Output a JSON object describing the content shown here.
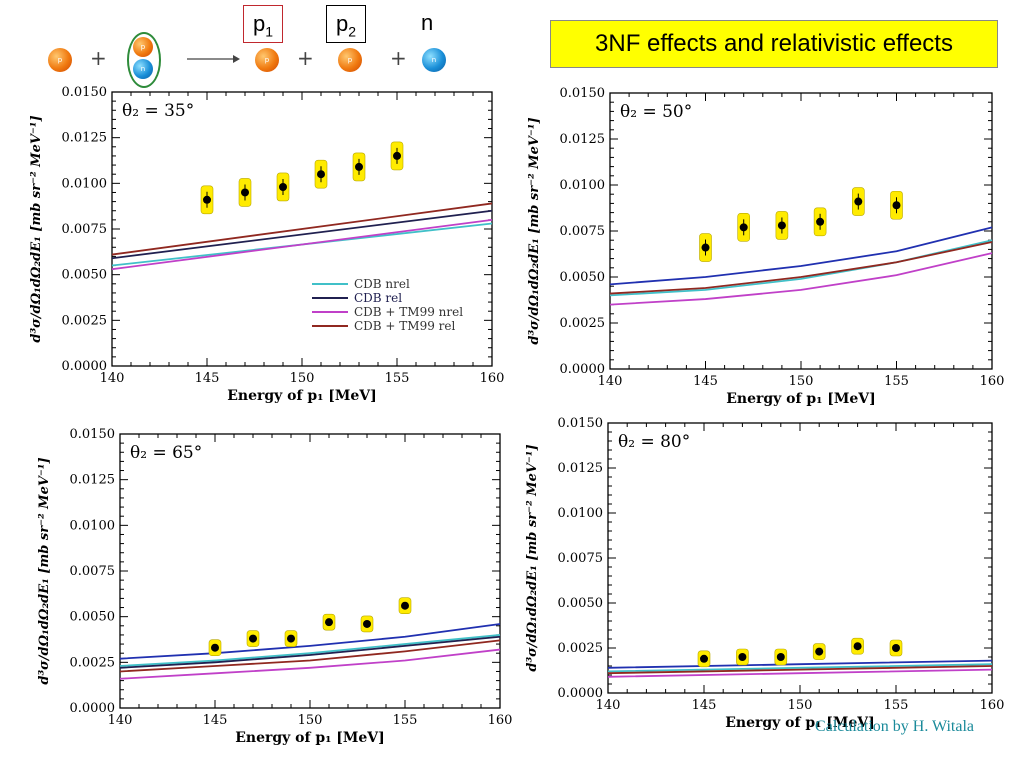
{
  "header": {
    "reaction": {
      "p1_label": "p",
      "p1_sub": "1",
      "p2_label": "p",
      "p2_sub": "2",
      "n_label": "n",
      "proton_symbol": "p",
      "neutron_symbol": "n"
    },
    "title": "3NF effects and relativistic effects"
  },
  "credit": "Calculation by H. Witala",
  "colors": {
    "cdb_nrel": "#40c0c8",
    "cdb_rel": "#202050",
    "cdb_tm99_nrel": "#c040c8",
    "cdb_tm99_rel": "#902820",
    "blue_line": "#2030b0",
    "data_highlight": "#ffeb00",
    "banner": "#ffff00"
  },
  "chart_data": [
    {
      "type": "line",
      "angle_label": "θ₂ = 35°",
      "xlabel": "Energy of p₁ [MeV]",
      "ylabel": "d³σ/dΩ₁dΩ₂dE₁ [mb sr⁻² MeV⁻¹]",
      "xlim": [
        140,
        160
      ],
      "ylim": [
        0,
        0.015
      ],
      "xticks": [
        "140",
        "145",
        "150",
        "155",
        "160"
      ],
      "yticks": [
        "0.0000",
        "0.0025",
        "0.0050",
        "0.0075",
        "0.0100",
        "0.0125",
        "0.0150"
      ],
      "legend": {
        "placement": "bottom-right",
        "entries": [
          "CDB nrel",
          "CDB rel",
          "CDB + TM99 nrel",
          "CDB + TM99 rel"
        ]
      },
      "data_points": [
        {
          "x": 145,
          "y": 0.0091
        },
        {
          "x": 147,
          "y": 0.0095
        },
        {
          "x": 149,
          "y": 0.0098
        },
        {
          "x": 151,
          "y": 0.0105
        },
        {
          "x": 153,
          "y": 0.0109
        },
        {
          "x": 155,
          "y": 0.0115
        }
      ],
      "series": [
        {
          "color_key": "cdb_nrel",
          "x": [
            140,
            160
          ],
          "y": [
            0.0055,
            0.0078
          ]
        },
        {
          "color_key": "cdb_rel",
          "x": [
            140,
            160
          ],
          "y": [
            0.0059,
            0.0085
          ]
        },
        {
          "color_key": "cdb_tm99_nrel",
          "x": [
            140,
            160
          ],
          "y": [
            0.0053,
            0.008
          ]
        },
        {
          "color_key": "cdb_tm99_rel",
          "x": [
            140,
            160
          ],
          "y": [
            0.0061,
            0.0089
          ]
        }
      ]
    },
    {
      "type": "line",
      "angle_label": "θ₂ = 50°",
      "xlabel": "Energy of p₁ [MeV]",
      "ylabel": "d³σ/dΩ₁dΩ₂dE₁ [mb sr⁻² MeV⁻¹]",
      "xlim": [
        140,
        160
      ],
      "ylim": [
        0,
        0.015
      ],
      "xticks": [
        "140",
        "145",
        "150",
        "155",
        "160"
      ],
      "yticks": [
        "0.0000",
        "0.0025",
        "0.0050",
        "0.0075",
        "0.0100",
        "0.0125",
        "0.0150"
      ],
      "data_points": [
        {
          "x": 145,
          "y": 0.0066
        },
        {
          "x": 147,
          "y": 0.0077
        },
        {
          "x": 149,
          "y": 0.0078
        },
        {
          "x": 151,
          "y": 0.008
        },
        {
          "x": 153,
          "y": 0.0091
        },
        {
          "x": 155,
          "y": 0.0089
        }
      ],
      "series": [
        {
          "color_key": "blue_line",
          "x": [
            140,
            145,
            150,
            155,
            160
          ],
          "y": [
            0.0046,
            0.005,
            0.0056,
            0.0064,
            0.0077
          ]
        },
        {
          "color_key": "cdb_nrel",
          "x": [
            140,
            145,
            150,
            155,
            160
          ],
          "y": [
            0.004,
            0.0043,
            0.0049,
            0.0058,
            0.007
          ]
        },
        {
          "color_key": "cdb_tm99_rel",
          "x": [
            140,
            145,
            150,
            155,
            160
          ],
          "y": [
            0.0041,
            0.0044,
            0.005,
            0.0058,
            0.0069
          ]
        },
        {
          "color_key": "cdb_tm99_nrel",
          "x": [
            140,
            145,
            150,
            155,
            160
          ],
          "y": [
            0.0035,
            0.0038,
            0.0043,
            0.0051,
            0.0063
          ]
        }
      ]
    },
    {
      "type": "line",
      "angle_label": "θ₂ = 65°",
      "xlabel": "Energy of p₁ [MeV]",
      "ylabel": "d³σ/dΩ₁dΩ₂dE₁ [mb sr⁻² MeV⁻¹]",
      "xlim": [
        140,
        160
      ],
      "ylim": [
        0,
        0.015
      ],
      "xticks": [
        "140",
        "145",
        "150",
        "155",
        "160"
      ],
      "yticks": [
        "0.0000",
        "0.0025",
        "0.0050",
        "0.0075",
        "0.0100",
        "0.0125",
        "0.0150"
      ],
      "data_points": [
        {
          "x": 145,
          "y": 0.0033
        },
        {
          "x": 147,
          "y": 0.0038
        },
        {
          "x": 149,
          "y": 0.0038
        },
        {
          "x": 151,
          "y": 0.0047
        },
        {
          "x": 153,
          "y": 0.0046
        },
        {
          "x": 155,
          "y": 0.0056
        }
      ],
      "series": [
        {
          "color_key": "blue_line",
          "x": [
            140,
            145,
            150,
            155,
            160
          ],
          "y": [
            0.0027,
            0.003,
            0.0034,
            0.0039,
            0.0046
          ]
        },
        {
          "color_key": "cdb_nrel",
          "x": [
            140,
            145,
            150,
            155,
            160
          ],
          "y": [
            0.0023,
            0.0026,
            0.003,
            0.0035,
            0.004
          ]
        },
        {
          "color_key": "cdb_rel",
          "x": [
            140,
            145,
            150,
            155,
            160
          ],
          "y": [
            0.0022,
            0.0025,
            0.0029,
            0.0034,
            0.0039
          ]
        },
        {
          "color_key": "cdb_tm99_rel",
          "x": [
            140,
            145,
            150,
            155,
            160
          ],
          "y": [
            0.002,
            0.0023,
            0.0026,
            0.0031,
            0.0037
          ]
        },
        {
          "color_key": "cdb_tm99_nrel",
          "x": [
            140,
            145,
            150,
            155,
            160
          ],
          "y": [
            0.0016,
            0.0019,
            0.0022,
            0.0026,
            0.0032
          ]
        }
      ]
    },
    {
      "type": "line",
      "angle_label": "θ₂ = 80°",
      "xlabel": "Energy of p₁ [MeV]",
      "ylabel": "d³σ/dΩ₁dΩ₂dE₁ [mb sr⁻² MeV⁻¹]",
      "xlim": [
        140,
        160
      ],
      "ylim": [
        0,
        0.015
      ],
      "xticks": [
        "140",
        "145",
        "150",
        "155",
        "160"
      ],
      "yticks": [
        "0.0000",
        "0.0025",
        "0.0050",
        "0.0075",
        "0.0100",
        "0.0125",
        "0.0150"
      ],
      "data_points": [
        {
          "x": 145,
          "y": 0.0019
        },
        {
          "x": 147,
          "y": 0.002
        },
        {
          "x": 149,
          "y": 0.002
        },
        {
          "x": 151,
          "y": 0.0023
        },
        {
          "x": 153,
          "y": 0.0026
        },
        {
          "x": 155,
          "y": 0.0025
        }
      ],
      "series": [
        {
          "color_key": "blue_line",
          "x": [
            140,
            150,
            160
          ],
          "y": [
            0.0014,
            0.0016,
            0.0018
          ]
        },
        {
          "color_key": "cdb_nrel",
          "x": [
            140,
            150,
            160
          ],
          "y": [
            0.0012,
            0.0014,
            0.0016
          ]
        },
        {
          "color_key": "cdb_tm99_rel",
          "x": [
            140,
            150,
            160
          ],
          "y": [
            0.0011,
            0.0013,
            0.0015
          ]
        },
        {
          "color_key": "cdb_tm99_nrel",
          "x": [
            140,
            150,
            160
          ],
          "y": [
            0.0009,
            0.0011,
            0.0013
          ]
        }
      ]
    }
  ]
}
